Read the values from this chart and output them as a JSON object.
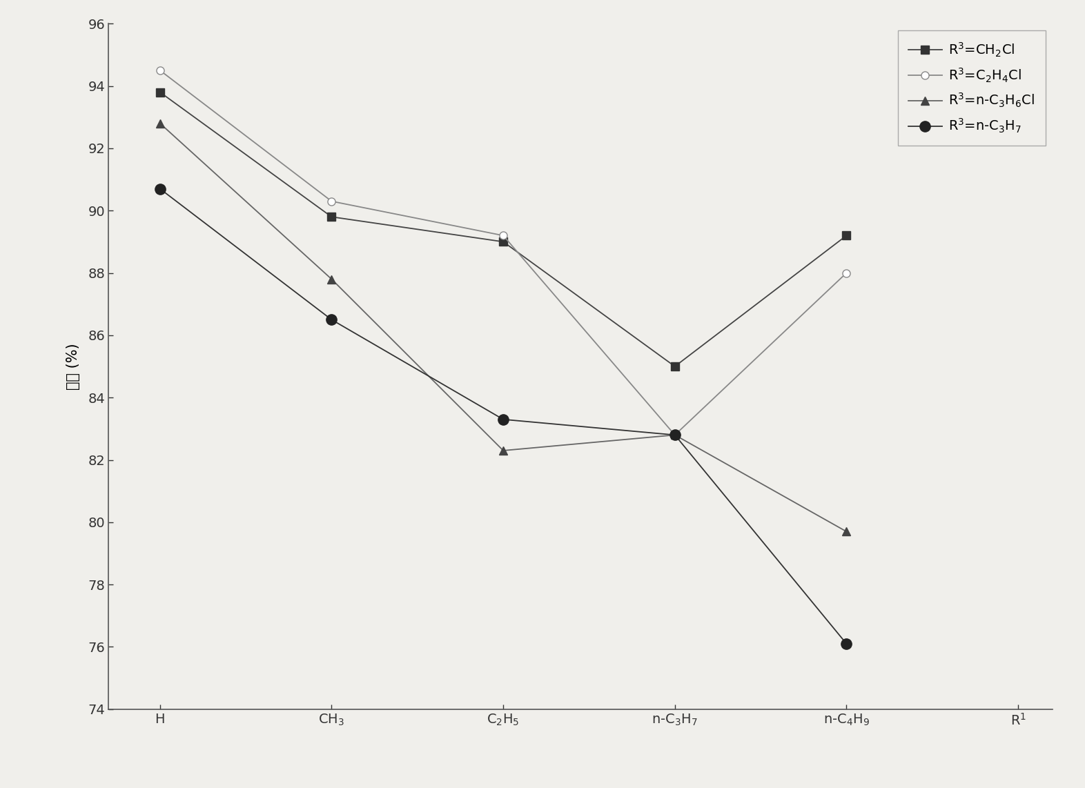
{
  "x_labels": [
    "H",
    "CH$_3$",
    "C$_2$H$_5$",
    "n-C$_3$H$_7$",
    "n-C$_4$H$_9$",
    "R$^1$"
  ],
  "x_positions": [
    0,
    1,
    2,
    3,
    4,
    5
  ],
  "series": [
    {
      "label": "R$^3$=CH$_2$Cl",
      "values": [
        93.8,
        89.8,
        89.0,
        85.0,
        89.2
      ],
      "color": "#444444",
      "marker": "s",
      "marker_fill": "#333333",
      "marker_edge": "#333333",
      "marker_size": 8,
      "linestyle": "-",
      "linewidth": 1.3
    },
    {
      "label": "R$^3$=C$_2$H$_4$Cl",
      "values": [
        94.5,
        90.3,
        89.2,
        82.8,
        88.0
      ],
      "color": "#888888",
      "marker": "o",
      "marker_fill": "white",
      "marker_edge": "#888888",
      "marker_size": 8,
      "linestyle": "-",
      "linewidth": 1.3
    },
    {
      "label": "R$^3$=n-C$_3$H$_6$Cl",
      "values": [
        92.8,
        87.8,
        82.3,
        82.8,
        79.7
      ],
      "color": "#666666",
      "marker": "^",
      "marker_fill": "#444444",
      "marker_edge": "#444444",
      "marker_size": 8,
      "linestyle": "-",
      "linewidth": 1.3
    },
    {
      "label": "R$^3$=n-C$_3$H$_7$",
      "values": [
        90.7,
        86.5,
        83.3,
        82.8,
        76.1
      ],
      "color": "#333333",
      "marker": "o",
      "marker_fill": "#222222",
      "marker_edge": "#222222",
      "marker_size": 11,
      "linestyle": "-",
      "linewidth": 1.3
    }
  ],
  "ylabel": "收率 (%)",
  "ylim": [
    74,
    96
  ],
  "yticks": [
    74,
    76,
    78,
    80,
    82,
    84,
    86,
    88,
    90,
    92,
    94,
    96
  ],
  "xlim": [
    -0.5,
    5.5
  ],
  "plot_xlim": [
    -0.3,
    5.2
  ],
  "figsize": [
    15.72,
    11.42
  ],
  "dpi": 100,
  "background_color": "#f0efeb",
  "legend_loc": "upper right",
  "legend_fontsize": 14,
  "tick_fontsize": 14,
  "ylabel_fontsize": 15
}
